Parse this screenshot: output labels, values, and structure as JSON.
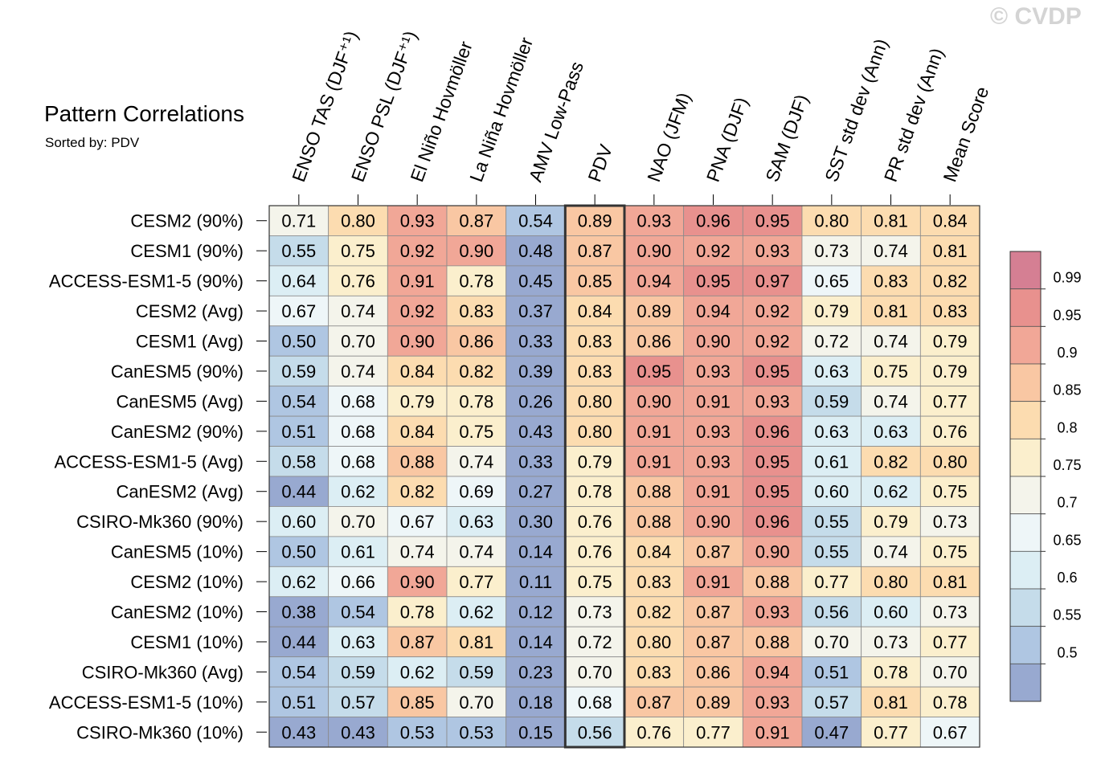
{
  "watermark": "© CVDP",
  "chart_data": {
    "type": "heatmap",
    "title": "Pattern Correlations",
    "subtitle": "Sorted by: PDV",
    "sorted_column": "PDV",
    "columns": [
      "ENSO TAS (DJF⁺¹)",
      "ENSO PSL (DJF⁺¹)",
      "El Niño Hovmöller",
      "La Niña Hovmöller",
      "AMV Low-Pass",
      "PDV",
      "NAO (JFM)",
      "PNA (DJF)",
      "SAM (DJF)",
      "SST std dev (Ann)",
      "PR std dev (Ann)",
      "Mean Score"
    ],
    "rows": [
      "CESM2 (90%)",
      "CESM1 (90%)",
      "ACCESS-ESM1-5 (90%)",
      "CESM2 (Avg)",
      "CESM1 (Avg)",
      "CanESM5 (90%)",
      "CanESM5 (Avg)",
      "CanESM2 (90%)",
      "ACCESS-ESM1-5 (Avg)",
      "CanESM2 (Avg)",
      "CSIRO-Mk360 (90%)",
      "CanESM5 (10%)",
      "CESM2 (10%)",
      "CanESM2 (10%)",
      "CESM1 (10%)",
      "CSIRO-Mk360 (Avg)",
      "ACCESS-ESM1-5 (10%)",
      "CSIRO-Mk360 (10%)"
    ],
    "values": [
      [
        "0.71",
        "0.80",
        "0.93",
        "0.87",
        "0.54",
        "0.89",
        "0.93",
        "0.96",
        "0.95",
        "0.80",
        "0.81",
        "0.84"
      ],
      [
        "0.55",
        "0.75",
        "0.92",
        "0.90",
        "0.48",
        "0.87",
        "0.90",
        "0.92",
        "0.93",
        "0.73",
        "0.74",
        "0.81"
      ],
      [
        "0.64",
        "0.76",
        "0.91",
        "0.78",
        "0.45",
        "0.85",
        "0.94",
        "0.95",
        "0.97",
        "0.65",
        "0.83",
        "0.82"
      ],
      [
        "0.67",
        "0.74",
        "0.92",
        "0.83",
        "0.37",
        "0.84",
        "0.89",
        "0.94",
        "0.92",
        "0.79",
        "0.81",
        "0.83"
      ],
      [
        "0.50",
        "0.70",
        "0.90",
        "0.86",
        "0.33",
        "0.83",
        "0.86",
        "0.90",
        "0.92",
        "0.72",
        "0.74",
        "0.79"
      ],
      [
        "0.59",
        "0.74",
        "0.84",
        "0.82",
        "0.39",
        "0.83",
        "0.95",
        "0.93",
        "0.95",
        "0.63",
        "0.75",
        "0.79"
      ],
      [
        "0.54",
        "0.68",
        "0.79",
        "0.78",
        "0.26",
        "0.80",
        "0.90",
        "0.91",
        "0.93",
        "0.59",
        "0.74",
        "0.77"
      ],
      [
        "0.51",
        "0.68",
        "0.84",
        "0.75",
        "0.43",
        "0.80",
        "0.91",
        "0.93",
        "0.96",
        "0.63",
        "0.63",
        "0.76"
      ],
      [
        "0.58",
        "0.68",
        "0.88",
        "0.74",
        "0.33",
        "0.79",
        "0.91",
        "0.93",
        "0.95",
        "0.61",
        "0.82",
        "0.80"
      ],
      [
        "0.44",
        "0.62",
        "0.82",
        "0.69",
        "0.27",
        "0.78",
        "0.88",
        "0.91",
        "0.95",
        "0.60",
        "0.62",
        "0.75"
      ],
      [
        "0.60",
        "0.70",
        "0.67",
        "0.63",
        "0.30",
        "0.76",
        "0.88",
        "0.90",
        "0.96",
        "0.55",
        "0.79",
        "0.73"
      ],
      [
        "0.50",
        "0.61",
        "0.74",
        "0.74",
        "0.14",
        "0.76",
        "0.84",
        "0.87",
        "0.90",
        "0.55",
        "0.74",
        "0.75"
      ],
      [
        "0.62",
        "0.66",
        "0.90",
        "0.77",
        "0.11",
        "0.75",
        "0.83",
        "0.91",
        "0.88",
        "0.77",
        "0.80",
        "0.81"
      ],
      [
        "0.38",
        "0.54",
        "0.78",
        "0.62",
        "0.12",
        "0.73",
        "0.82",
        "0.87",
        "0.93",
        "0.56",
        "0.60",
        "0.73"
      ],
      [
        "0.44",
        "0.63",
        "0.87",
        "0.81",
        "0.14",
        "0.72",
        "0.80",
        "0.87",
        "0.88",
        "0.70",
        "0.73",
        "0.77"
      ],
      [
        "0.54",
        "0.59",
        "0.62",
        "0.59",
        "0.23",
        "0.70",
        "0.83",
        "0.86",
        "0.94",
        "0.51",
        "0.78",
        "0.70"
      ],
      [
        "0.51",
        "0.57",
        "0.85",
        "0.70",
        "0.18",
        "0.68",
        "0.87",
        "0.89",
        "0.93",
        "0.57",
        "0.81",
        "0.78"
      ],
      [
        "0.43",
        "0.43",
        "0.53",
        "0.53",
        "0.15",
        "0.56",
        "0.76",
        "0.77",
        "0.91",
        "0.47",
        "0.77",
        "0.67"
      ]
    ],
    "colorbar": {
      "levels": [
        "0.99",
        "0.95",
        "0.9",
        "0.85",
        "0.8",
        "0.75",
        "0.7",
        "0.65",
        "0.6",
        "0.55",
        "0.5"
      ],
      "boundaries": [
        0.5,
        0.55,
        0.6,
        0.65,
        0.7,
        0.75,
        0.8,
        0.85,
        0.9,
        0.95,
        0.99
      ],
      "colors": [
        "#98a9d0",
        "#afc6e2",
        "#c5dcea",
        "#dceef4",
        "#eef6f8",
        "#f4f4eb",
        "#fbefcd",
        "#fcdcb0",
        "#f9c7a3",
        "#f1a797",
        "#e8918e",
        "#d57f93"
      ]
    }
  }
}
